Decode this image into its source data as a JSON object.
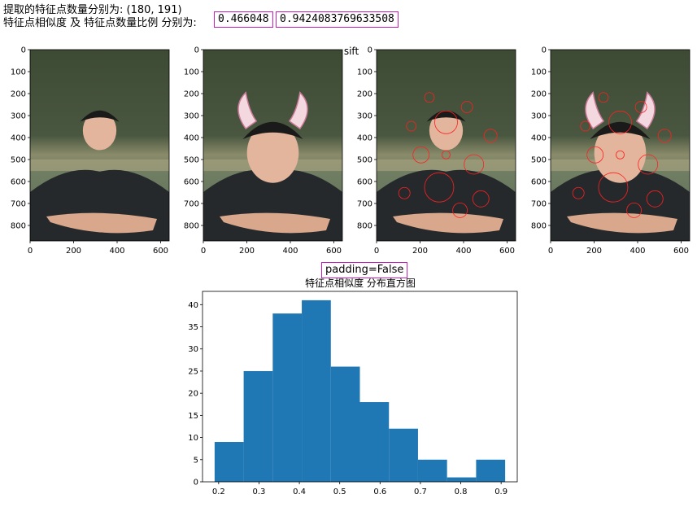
{
  "header": {
    "line1": "提取的特征点数量分别为: (180, 191)",
    "line2": "特征点相似度 及 特征点数量比例 分别为:",
    "similarity": "0.466048",
    "ratio": "0.9424083769633508"
  },
  "panels": {
    "center_title": "sift",
    "yticks": [
      "0",
      "100",
      "200",
      "300",
      "400",
      "500",
      "600",
      "700",
      "800"
    ],
    "xticks": [
      "0",
      "200",
      "400",
      "600"
    ]
  },
  "padding_label": "padding=False",
  "chart_data": {
    "type": "bar",
    "title": "特征点相似度 分布直方图",
    "xlabel": "",
    "ylabel": "",
    "color": "#1f77b4",
    "bin_edges": [
      0.19,
      0.262,
      0.334,
      0.406,
      0.478,
      0.55,
      0.622,
      0.694,
      0.766,
      0.838,
      0.91
    ],
    "values": [
      9,
      25,
      38,
      41,
      26,
      18,
      12,
      5,
      1,
      5
    ],
    "xlim": [
      0.16,
      0.94
    ],
    "ylim": [
      0,
      43
    ],
    "xticks": [
      "0.2",
      "0.3",
      "0.4",
      "0.5",
      "0.6",
      "0.7",
      "0.8",
      "0.9"
    ],
    "yticks": [
      "0",
      "5",
      "10",
      "15",
      "20",
      "25",
      "30",
      "35",
      "40"
    ]
  }
}
